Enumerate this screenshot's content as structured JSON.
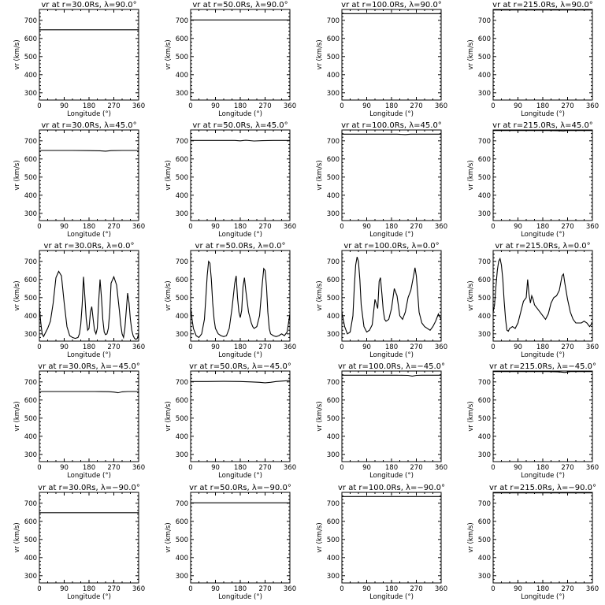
{
  "figure": {
    "panel_titles": [
      [
        "vr at r=30.0Rs, λ=90.0°",
        "vr at r=50.0Rs, λ=90.0°",
        "vr at r=100.0Rs, λ=90.0°",
        "vr at r=215.0Rs, λ=90.0°"
      ],
      [
        "vr at r=30.0Rs, λ=45.0°",
        "vr at r=50.0Rs, λ=45.0°",
        "vr at r=100.0Rs, λ=45.0°",
        "vr at r=215.0Rs, λ=45.0°"
      ],
      [
        "vr at r=30.0Rs, λ=0.0°",
        "vr at r=50.0Rs, λ=0.0°",
        "vr at r=100.0Rs, λ=0.0°",
        "vr at r=215.0Rs, λ=0.0°"
      ],
      [
        "vr at r=30.0Rs, λ=−45.0°",
        "vr at r=50.0Rs, λ=−45.0°",
        "vr at r=100.0Rs, λ=−45.0°",
        "vr at r=215.0Rs, λ=−45.0°"
      ],
      [
        "vr at r=30.0Rs, λ=−90.0°",
        "vr at r=50.0Rs, λ=−90.0°",
        "vr at r=100.0Rs, λ=−90.0°",
        "vr at r=215.0Rs, λ=−90.0°"
      ]
    ],
    "xlabel": "Longitude (°)",
    "ylabel": "vr (km/s)"
  },
  "chart_data": {
    "type": "line",
    "layout": "5x4 grid",
    "xlabel": "Longitude (°)",
    "ylabel": "vr (km/s)",
    "xlim": [
      0,
      360
    ],
    "ylim": [
      260,
      760
    ],
    "xticks": [
      0,
      90,
      180,
      270,
      360
    ],
    "yticks": [
      300,
      400,
      500,
      600,
      700
    ],
    "radii_Rs": [
      30.0,
      50.0,
      100.0,
      215.0
    ],
    "latitudes_deg": [
      90.0,
      45.0,
      0.0,
      -45.0,
      -90.0
    ],
    "panels": [
      {
        "row": 0,
        "col": 0,
        "x": [
          0,
          360
        ],
        "y": [
          648,
          648
        ]
      },
      {
        "row": 0,
        "col": 1,
        "x": [
          0,
          360
        ],
        "y": [
          702,
          702
        ]
      },
      {
        "row": 0,
        "col": 2,
        "x": [
          0,
          360
        ],
        "y": [
          737,
          737
        ]
      },
      {
        "row": 0,
        "col": 3,
        "x": [
          0,
          360
        ],
        "y": [
          757,
          757
        ]
      },
      {
        "row": 1,
        "col": 0,
        "x": [
          0,
          60,
          120,
          180,
          220,
          240,
          260,
          300,
          360
        ],
        "y": [
          647,
          647,
          647,
          646,
          645,
          643,
          646,
          647,
          647
        ]
      },
      {
        "row": 1,
        "col": 1,
        "x": [
          0,
          60,
          120,
          160,
          180,
          200,
          230,
          260,
          300,
          360
        ],
        "y": [
          702,
          702,
          702,
          702,
          700,
          703,
          699,
          701,
          702,
          702
        ]
      },
      {
        "row": 1,
        "col": 2,
        "x": [
          0,
          100,
          200,
          230,
          250,
          280,
          360
        ],
        "y": [
          737,
          737,
          737,
          735,
          737,
          737,
          737
        ]
      },
      {
        "row": 1,
        "col": 3,
        "x": [
          0,
          120,
          200,
          240,
          255,
          270,
          360
        ],
        "y": [
          757,
          757,
          757,
          756,
          755,
          757,
          757
        ]
      },
      {
        "row": 2,
        "col": 0,
        "x": [
          0,
          5,
          10,
          15,
          20,
          30,
          40,
          50,
          60,
          70,
          80,
          90,
          100,
          110,
          120,
          130,
          140,
          145,
          150,
          155,
          160,
          165,
          170,
          175,
          180,
          185,
          190,
          195,
          200,
          205,
          210,
          215,
          220,
          225,
          230,
          235,
          240,
          245,
          250,
          255,
          260,
          270,
          280,
          290,
          295,
          300,
          305,
          310,
          315,
          320,
          325,
          330,
          335,
          340,
          345,
          350,
          355,
          360
        ],
        "y": [
          450,
          360,
          300,
          285,
          300,
          330,
          370,
          470,
          610,
          645,
          620,
          470,
          340,
          290,
          280,
          275,
          280,
          300,
          350,
          460,
          615,
          500,
          380,
          320,
          330,
          420,
          450,
          380,
          320,
          300,
          330,
          480,
          600,
          500,
          380,
          310,
          295,
          300,
          330,
          420,
          580,
          615,
          570,
          430,
          350,
          300,
          280,
          330,
          430,
          525,
          470,
          380,
          320,
          290,
          275,
          270,
          275,
          300
        ]
      },
      {
        "row": 2,
        "col": 1,
        "x": [
          0,
          5,
          10,
          20,
          30,
          40,
          50,
          55,
          60,
          65,
          70,
          75,
          80,
          85,
          90,
          100,
          110,
          120,
          130,
          140,
          150,
          160,
          165,
          170,
          175,
          180,
          185,
          190,
          195,
          200,
          210,
          220,
          225,
          230,
          240,
          250,
          260,
          265,
          270,
          275,
          280,
          285,
          290,
          300,
          310,
          320,
          330,
          340,
          350,
          360
        ],
        "y": [
          450,
          380,
          330,
          290,
          280,
          300,
          380,
          500,
          620,
          700,
          690,
          600,
          470,
          380,
          330,
          300,
          290,
          285,
          290,
          330,
          440,
          580,
          620,
          500,
          420,
          390,
          430,
          560,
          610,
          540,
          420,
          360,
          340,
          330,
          340,
          400,
          580,
          660,
          650,
          560,
          420,
          330,
          300,
          290,
          285,
          290,
          300,
          290,
          310,
          410
        ]
      },
      {
        "row": 2,
        "col": 2,
        "x": [
          0,
          10,
          20,
          30,
          40,
          45,
          50,
          55,
          60,
          65,
          70,
          80,
          90,
          100,
          110,
          120,
          130,
          135,
          140,
          145,
          150,
          155,
          160,
          170,
          180,
          190,
          200,
          210,
          220,
          230,
          240,
          250,
          260,
          265,
          270,
          275,
          280,
          290,
          300,
          310,
          320,
          330,
          340,
          350,
          360
        ],
        "y": [
          420,
          340,
          300,
          310,
          400,
          560,
          680,
          725,
          700,
          600,
          460,
          340,
          310,
          320,
          350,
          490,
          440,
          590,
          610,
          520,
          430,
          380,
          370,
          380,
          440,
          550,
          510,
          400,
          380,
          420,
          500,
          540,
          620,
          665,
          620,
          520,
          420,
          360,
          340,
          330,
          320,
          340,
          370,
          410,
          380
        ]
      },
      {
        "row": 2,
        "col": 3,
        "x": [
          0,
          5,
          10,
          15,
          20,
          25,
          30,
          35,
          40,
          45,
          50,
          55,
          60,
          65,
          70,
          80,
          90,
          100,
          110,
          120,
          125,
          130,
          135,
          140,
          145,
          150,
          160,
          170,
          180,
          190,
          200,
          210,
          220,
          230,
          240,
          250,
          255,
          260,
          270,
          280,
          290,
          300,
          310,
          320,
          330,
          340,
          350,
          360
        ],
        "y": [
          420,
          460,
          560,
          650,
          700,
          715,
          680,
          600,
          480,
          380,
          320,
          315,
          330,
          335,
          340,
          330,
          360,
          420,
          480,
          500,
          600,
          520,
          470,
          510,
          490,
          460,
          440,
          420,
          400,
          380,
          410,
          470,
          500,
          510,
          540,
          620,
          630,
          580,
          490,
          420,
          380,
          360,
          360,
          360,
          370,
          360,
          340,
          360
        ]
      },
      {
        "row": 3,
        "col": 0,
        "x": [
          0,
          100,
          200,
          250,
          270,
          285,
          300,
          320,
          360
        ],
        "y": [
          647,
          647,
          647,
          646,
          644,
          640,
          645,
          647,
          647
        ]
      },
      {
        "row": 3,
        "col": 1,
        "x": [
          0,
          60,
          120,
          180,
          220,
          250,
          270,
          290,
          310,
          340,
          360
        ],
        "y": [
          702,
          702,
          703,
          702,
          700,
          698,
          695,
          698,
          702,
          705,
          708
        ]
      },
      {
        "row": 3,
        "col": 2,
        "x": [
          0,
          100,
          200,
          240,
          255,
          270,
          290,
          320,
          360
        ],
        "y": [
          737,
          737,
          737,
          736,
          732,
          736,
          737,
          737,
          737
        ]
      },
      {
        "row": 3,
        "col": 3,
        "x": [
          0,
          120,
          200,
          240,
          260,
          280,
          360
        ],
        "y": [
          757,
          757,
          757,
          755,
          752,
          757,
          757
        ]
      },
      {
        "row": 4,
        "col": 0,
        "x": [
          0,
          360
        ],
        "y": [
          648,
          648
        ]
      },
      {
        "row": 4,
        "col": 1,
        "x": [
          0,
          360
        ],
        "y": [
          702,
          702
        ]
      },
      {
        "row": 4,
        "col": 2,
        "x": [
          0,
          360
        ],
        "y": [
          737,
          737
        ]
      },
      {
        "row": 4,
        "col": 3,
        "x": [
          0,
          360
        ],
        "y": [
          757,
          757
        ]
      }
    ]
  }
}
